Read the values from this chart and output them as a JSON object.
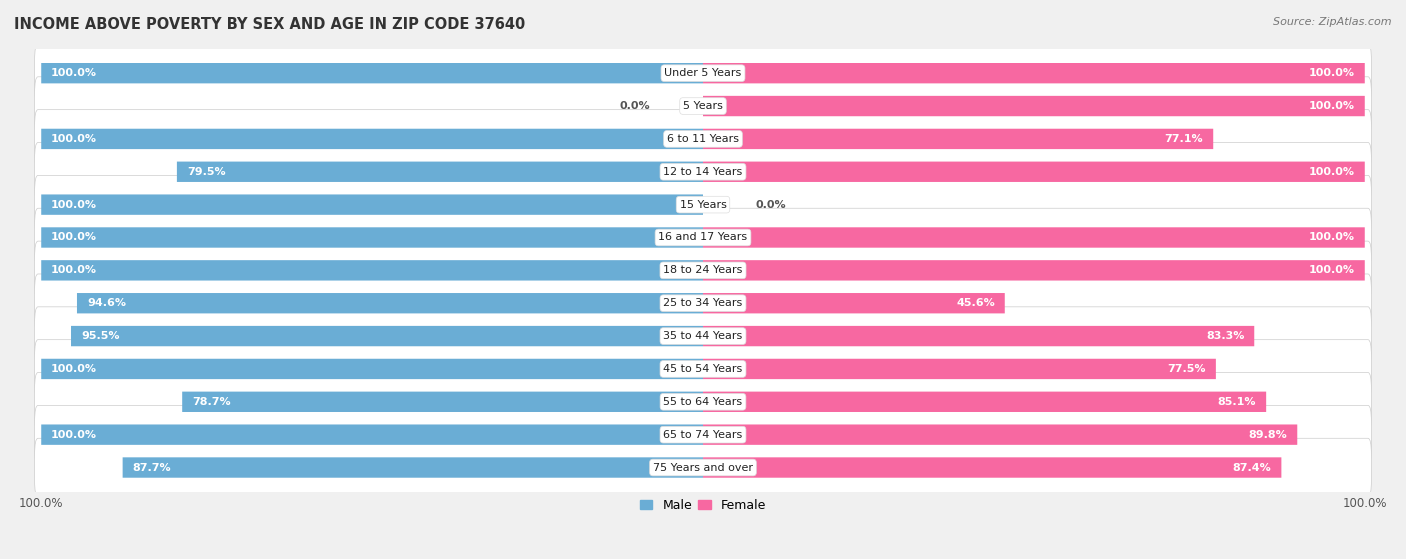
{
  "title": "INCOME ABOVE POVERTY BY SEX AND AGE IN ZIP CODE 37640",
  "source": "Source: ZipAtlas.com",
  "categories": [
    "Under 5 Years",
    "5 Years",
    "6 to 11 Years",
    "12 to 14 Years",
    "15 Years",
    "16 and 17 Years",
    "18 to 24 Years",
    "25 to 34 Years",
    "35 to 44 Years",
    "45 to 54 Years",
    "55 to 64 Years",
    "65 to 74 Years",
    "75 Years and over"
  ],
  "male": [
    100.0,
    0.0,
    100.0,
    79.5,
    100.0,
    100.0,
    100.0,
    94.6,
    95.5,
    100.0,
    78.7,
    100.0,
    87.7
  ],
  "female": [
    100.0,
    100.0,
    77.1,
    100.0,
    0.0,
    100.0,
    100.0,
    45.6,
    83.3,
    77.5,
    85.1,
    89.8,
    87.4
  ],
  "male_color": "#6aadd5",
  "female_color": "#f768a1",
  "male_color_light": "#c6dbef",
  "female_color_light": "#fbb4c9",
  "row_bg_color": "#ffffff",
  "outer_bg_color": "#e8e8e8",
  "fig_bg_color": "#f0f0f0",
  "max_val": 100.0,
  "title_fontsize": 10.5,
  "label_fontsize": 8,
  "value_fontsize": 8
}
